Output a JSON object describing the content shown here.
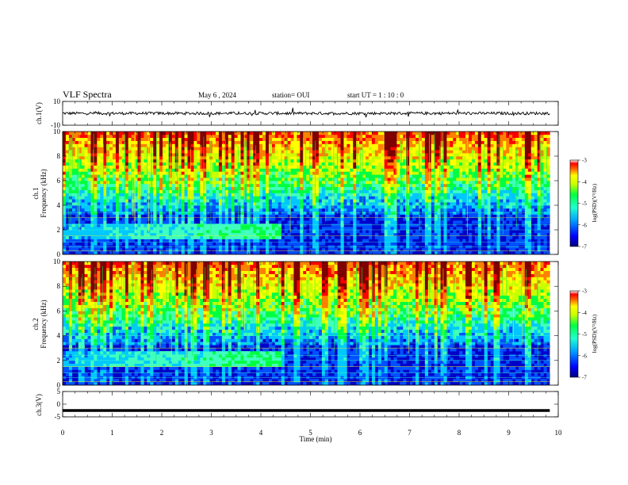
{
  "header": {
    "title": "VLF Spectra",
    "date": "May 6 , 2024",
    "station": "station= OUI",
    "start": "start UT = 1 : 10 : 0"
  },
  "chart_data": [
    {
      "type": "line",
      "name": "ch1-voltage",
      "ylabel": "ch.1(V)",
      "ylim": [
        -10,
        10
      ],
      "yticks": [
        "10",
        "-10"
      ],
      "xlim": [
        0,
        10
      ],
      "series_color": "#000000",
      "baseline": 0,
      "noise_amplitude": 1.2
    },
    {
      "type": "heatmap",
      "name": "ch1-spectrogram",
      "ylabel": "ch.1 Frequency (kHz)",
      "ylim": [
        0,
        10
      ],
      "yticks": [
        "0",
        "2",
        "4",
        "6",
        "8",
        "10"
      ],
      "xlim": [
        0,
        10
      ],
      "data_end_time_min": 9.83,
      "colorbar": {
        "label": "log(PSD)(V²/Hz)",
        "ticks": [
          "-3",
          "-4",
          "-5",
          "-6",
          "-7"
        ],
        "range": [
          -7,
          -3
        ]
      },
      "features": {
        "emission_band_khz": [
          1.3,
          2.6
        ],
        "emission_end_min": 4.4,
        "hiss_khz_above": 5.0
      }
    },
    {
      "type": "heatmap",
      "name": "ch2-spectrogram",
      "ylabel": "ch.2 Frequency (kHz)",
      "ylim": [
        0,
        10
      ],
      "yticks": [
        "0",
        "2",
        "4",
        "6",
        "8",
        "10"
      ],
      "xlim": [
        0,
        10
      ],
      "data_end_time_min": 9.83,
      "colorbar": {
        "label": "log(PSD)(V²/Hz)",
        "ticks": [
          "-3",
          "-4",
          "-5",
          "-6",
          "-7"
        ],
        "range": [
          -7,
          -3
        ]
      },
      "features": {
        "emission_band_khz": [
          1.6,
          2.8
        ],
        "emission_end_min": 4.4,
        "hiss_khz_above": 5.0
      }
    },
    {
      "type": "line",
      "name": "ch3-voltage",
      "ylabel": "ch.3(V)",
      "ylim": [
        -5,
        5
      ],
      "yticks": [
        "5",
        "0",
        "-5"
      ],
      "xlim": [
        0,
        10
      ],
      "xticks": [
        "0",
        "1",
        "2",
        "3",
        "4",
        "5",
        "6",
        "7",
        "8",
        "9",
        "10"
      ],
      "xlabel": "Time (min)",
      "series_color": "#000000",
      "baseline": -2.5
    }
  ],
  "colormap": [
    "#00007f",
    "#0000ff",
    "#0050ff",
    "#00c8ff",
    "#40ffbf",
    "#00ff40",
    "#c8ff00",
    "#ffff00",
    "#ff8000",
    "#ff0000",
    "#7f0000"
  ]
}
